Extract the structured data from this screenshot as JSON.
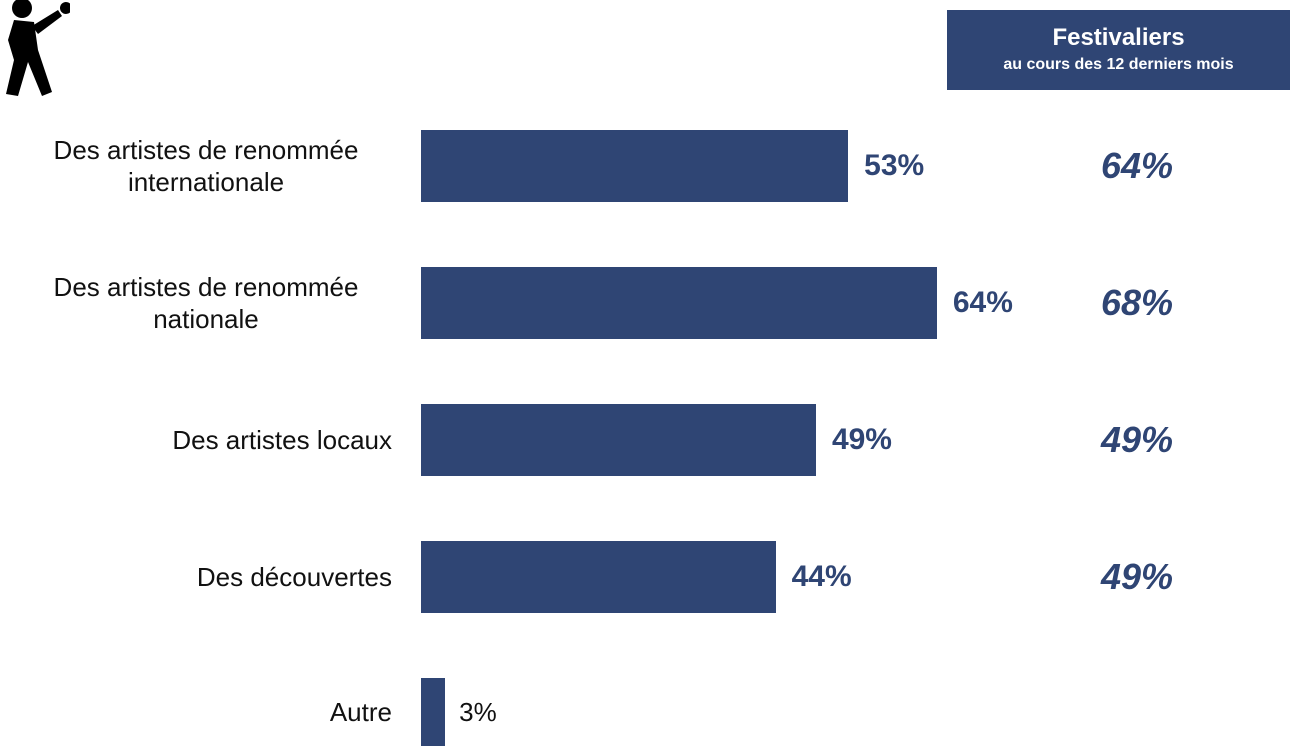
{
  "chart_data": {
    "type": "bar",
    "orientation": "horizontal",
    "categories": [
      "Des artistes de renommée internationale",
      "Des artistes de renommée nationale",
      "Des artistes locaux",
      "Des découvertes",
      "Autre"
    ],
    "series": [
      {
        "color": "#2f4574",
        "values": [
          53,
          64,
          49,
          44,
          3
        ],
        "value_labels": [
          "53%",
          "64%",
          "49%",
          "44%",
          "3%"
        ]
      },
      {
        "name": "Festivaliers",
        "subtitle": "au cours des 12 derniers mois",
        "color": "#2f4574",
        "values": [
          64,
          68,
          49,
          49,
          null
        ],
        "value_labels": [
          "64%",
          "68%",
          "49%",
          "49%",
          null
        ]
      }
    ]
  }
}
